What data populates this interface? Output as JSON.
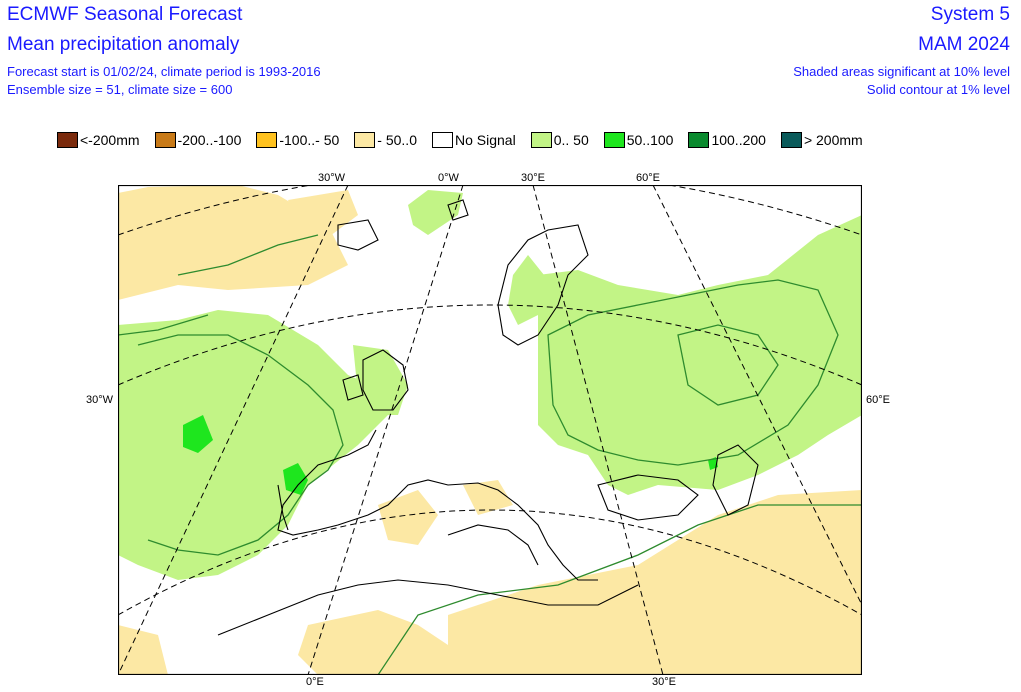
{
  "header": {
    "title": "ECMWF Seasonal Forecast",
    "subtitle": "Mean precipitation anomaly",
    "forecast_info": "Forecast start is 01/02/24, climate period is 1993-2016",
    "ensemble_info": "Ensemble size = 51, climate size = 600",
    "system": "System 5",
    "season": "MAM 2024",
    "significance_note": "Shaded areas significant at 10% level",
    "contour_note": "Solid contour at 1% level"
  },
  "legend": [
    {
      "label": "<-200mm",
      "color": "#7a2a0c"
    },
    {
      "label": "-200..-100",
      "color": "#c87a18"
    },
    {
      "label": "-100..- 50",
      "color": "#ffc21f"
    },
    {
      "label": "- 50..0",
      "color": "#fce8a4"
    },
    {
      "label": "No Signal",
      "color": "#ffffff"
    },
    {
      "label": "0.. 50",
      "color": "#c2f486"
    },
    {
      "label": "50..100",
      "color": "#1ee61e"
    },
    {
      "label": "100..200",
      "color": "#0a8a2e"
    },
    {
      "label": "> 200mm",
      "color": "#0a5a5a"
    }
  ],
  "map": {
    "projection": "polar stereographic",
    "colors": {
      "wet": "#c2f486",
      "wetter": "#1ee61e",
      "dry": "#fce8a4",
      "contour": "#2e8b2e",
      "coast": "#000000",
      "grid": "#000000"
    },
    "top_ticks": [
      "30°W",
      "0°W",
      "30°E",
      "60°E"
    ],
    "bottom_ticks": [
      "0°E",
      "30°E"
    ],
    "left_ticks": [
      "30°W"
    ],
    "right_ticks": [
      "60°E"
    ]
  }
}
